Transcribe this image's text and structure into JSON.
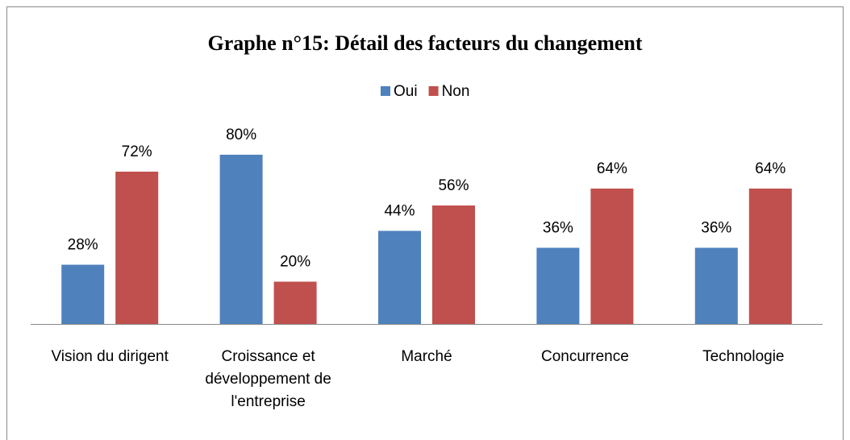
{
  "chart_data": {
    "type": "bar",
    "title": "Graphe n°15: Détail des facteurs du changement",
    "categories": [
      "Vision du dirigent",
      "Croissance et développement de l'entreprise",
      "Marché",
      "Concurrence",
      "Technologie"
    ],
    "series": [
      {
        "name": "Oui",
        "color": "#4f81bd",
        "values": [
          28,
          80,
          44,
          36,
          36
        ],
        "value_labels": [
          "28%",
          "80%",
          "44%",
          "36%",
          "36%"
        ]
      },
      {
        "name": "Non",
        "color": "#c0504d",
        "values": [
          72,
          20,
          56,
          64,
          64
        ],
        "value_labels": [
          "72%",
          "20%",
          "56%",
          "64%",
          "64%"
        ]
      }
    ],
    "legend": "top"
  }
}
